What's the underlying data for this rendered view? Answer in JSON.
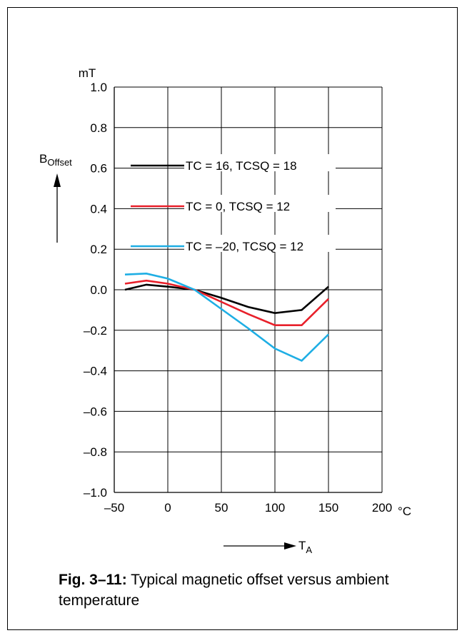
{
  "chart_data": {
    "type": "line",
    "y_unit": "mT",
    "y_symbol": "B",
    "y_symbol_sub": "Offset",
    "x_unit": "°C",
    "x_symbol": "T",
    "x_symbol_sub": "A",
    "xlim": [
      -50,
      200
    ],
    "ylim": [
      -1.0,
      1.0
    ],
    "x_ticks": [
      -50,
      0,
      50,
      100,
      150,
      200
    ],
    "x_tick_labels": [
      "–50",
      "0",
      "50",
      "100",
      "150",
      "200"
    ],
    "y_ticks": [
      1.0,
      0.8,
      0.6,
      0.4,
      0.2,
      0.0,
      -0.2,
      -0.4,
      -0.6,
      -0.8,
      -1.0
    ],
    "y_tick_labels": [
      "1.0",
      "0.8",
      "0.6",
      "0.4",
      "0.2",
      "0.0",
      "–0.2",
      "–0.4",
      "–0.6",
      "–0.8",
      "–1.0"
    ],
    "grid": true,
    "legend_placement": "upper-center",
    "series": [
      {
        "name": "TC = 16, TCSQ = 18",
        "color": "#000000",
        "x": [
          -40,
          -20,
          0,
          25,
          50,
          75,
          100,
          125,
          150
        ],
        "y": [
          0.0,
          0.025,
          0.015,
          0.0,
          -0.04,
          -0.085,
          -0.115,
          -0.1,
          0.015
        ]
      },
      {
        "name": "TC = 0, TCSQ = 12",
        "color": "#e8202a",
        "x": [
          -40,
          -20,
          0,
          25,
          50,
          75,
          100,
          125,
          150
        ],
        "y": [
          0.03,
          0.045,
          0.03,
          0.0,
          -0.06,
          -0.12,
          -0.175,
          -0.175,
          -0.045
        ]
      },
      {
        "name": "TC = –20, TCSQ = 12",
        "color": "#1eaee4",
        "x": [
          -40,
          -20,
          0,
          25,
          50,
          75,
          100,
          125,
          150
        ],
        "y": [
          0.075,
          0.08,
          0.055,
          0.0,
          -0.095,
          -0.19,
          -0.29,
          -0.35,
          -0.22
        ]
      }
    ]
  },
  "caption": {
    "label": "Fig. 3–11:",
    "text": " Typical magnetic offset versus ambient temperature"
  }
}
